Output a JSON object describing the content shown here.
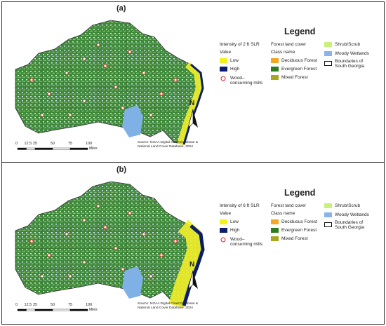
{
  "panels": [
    {
      "label": "(a)",
      "legend": {
        "title": "Legend",
        "intensity_title": "Intensity of 2 ft SLR",
        "value_header": "Value",
        "low": "Low",
        "high": "High",
        "mills": "Wood–consuming mills",
        "forest_title": "Forest land cover",
        "class_header": "Class name",
        "classes": [
          "Deciduous Forest",
          "Evergreen Forest",
          "Mixed Forest",
          "Shrub/Scrub",
          "Woody Wetlands"
        ],
        "boundaries": "Boundaries of South Georgia"
      },
      "scale": {
        "ticks": [
          "0",
          "12.5",
          "25",
          "50",
          "75",
          "100"
        ],
        "unit": "Miles"
      },
      "source": "Source: NOAA Digital Coast Database & National Land Cover Database, 2024",
      "north": "N"
    },
    {
      "label": "(b)",
      "legend": {
        "title": "Legend",
        "intensity_title": "Intensity of 6 ft SLR",
        "value_header": "Value",
        "low": "Low",
        "high": "High",
        "mills": "Wood–consuming mills",
        "forest_title": "Forest land cover",
        "class_header": "Class name",
        "classes": [
          "Deciduous Forest",
          "Evergreen Forest",
          "Mixed Forest",
          "Shrub/Scrub",
          "Woody Wetlands"
        ],
        "boundaries": "Boundaries of South Georgia"
      },
      "scale": {
        "ticks": [
          "0",
          "12.5",
          "25",
          "50",
          "75",
          "100"
        ],
        "unit": "Miles"
      },
      "source": "Source: NOAA Digital Coast Database & National Land Cover Database, 2024",
      "north": "N"
    }
  ]
}
